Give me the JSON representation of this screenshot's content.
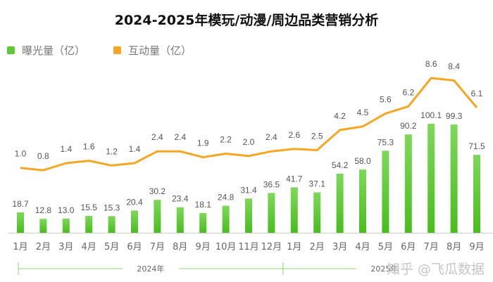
{
  "chart_data": {
    "type": "bar+line",
    "title": "2024-2025年模玩/动漫/周边品类营销分析",
    "categories": [
      "1月",
      "2月",
      "3月",
      "4月",
      "5月",
      "6月",
      "7月",
      "8月",
      "9月",
      "10月",
      "11月",
      "12月",
      "1月",
      "2月",
      "3月",
      "4月",
      "5月",
      "6月",
      "7月",
      "8月",
      "9月"
    ],
    "year_groups": [
      {
        "label": "2024年",
        "from": 0,
        "to": 11
      },
      {
        "label": "2025年",
        "from": 12,
        "to": 20
      }
    ],
    "series": [
      {
        "name": "曝光量（亿）",
        "type": "bar",
        "color": "#5cc83a",
        "values": [
          18.7,
          12.8,
          13.0,
          15.5,
          15.3,
          20.4,
          30.2,
          23.4,
          18.1,
          24.8,
          31.4,
          36.5,
          41.7,
          37.1,
          54.2,
          58.0,
          75.3,
          90.2,
          100.1,
          99.3,
          71.5
        ]
      },
      {
        "name": "互动量（亿）",
        "type": "line",
        "color": "#f5a623",
        "values": [
          1.0,
          0.8,
          1.4,
          1.6,
          1.2,
          1.4,
          2.4,
          2.4,
          1.9,
          2.2,
          2.0,
          2.4,
          2.6,
          2.5,
          4.2,
          4.5,
          5.6,
          6.2,
          8.6,
          8.4,
          6.1
        ]
      }
    ],
    "xlabel": "",
    "ylabel": "",
    "grid": false,
    "legend": "top-left"
  },
  "watermark": "知乎 @飞瓜数据"
}
